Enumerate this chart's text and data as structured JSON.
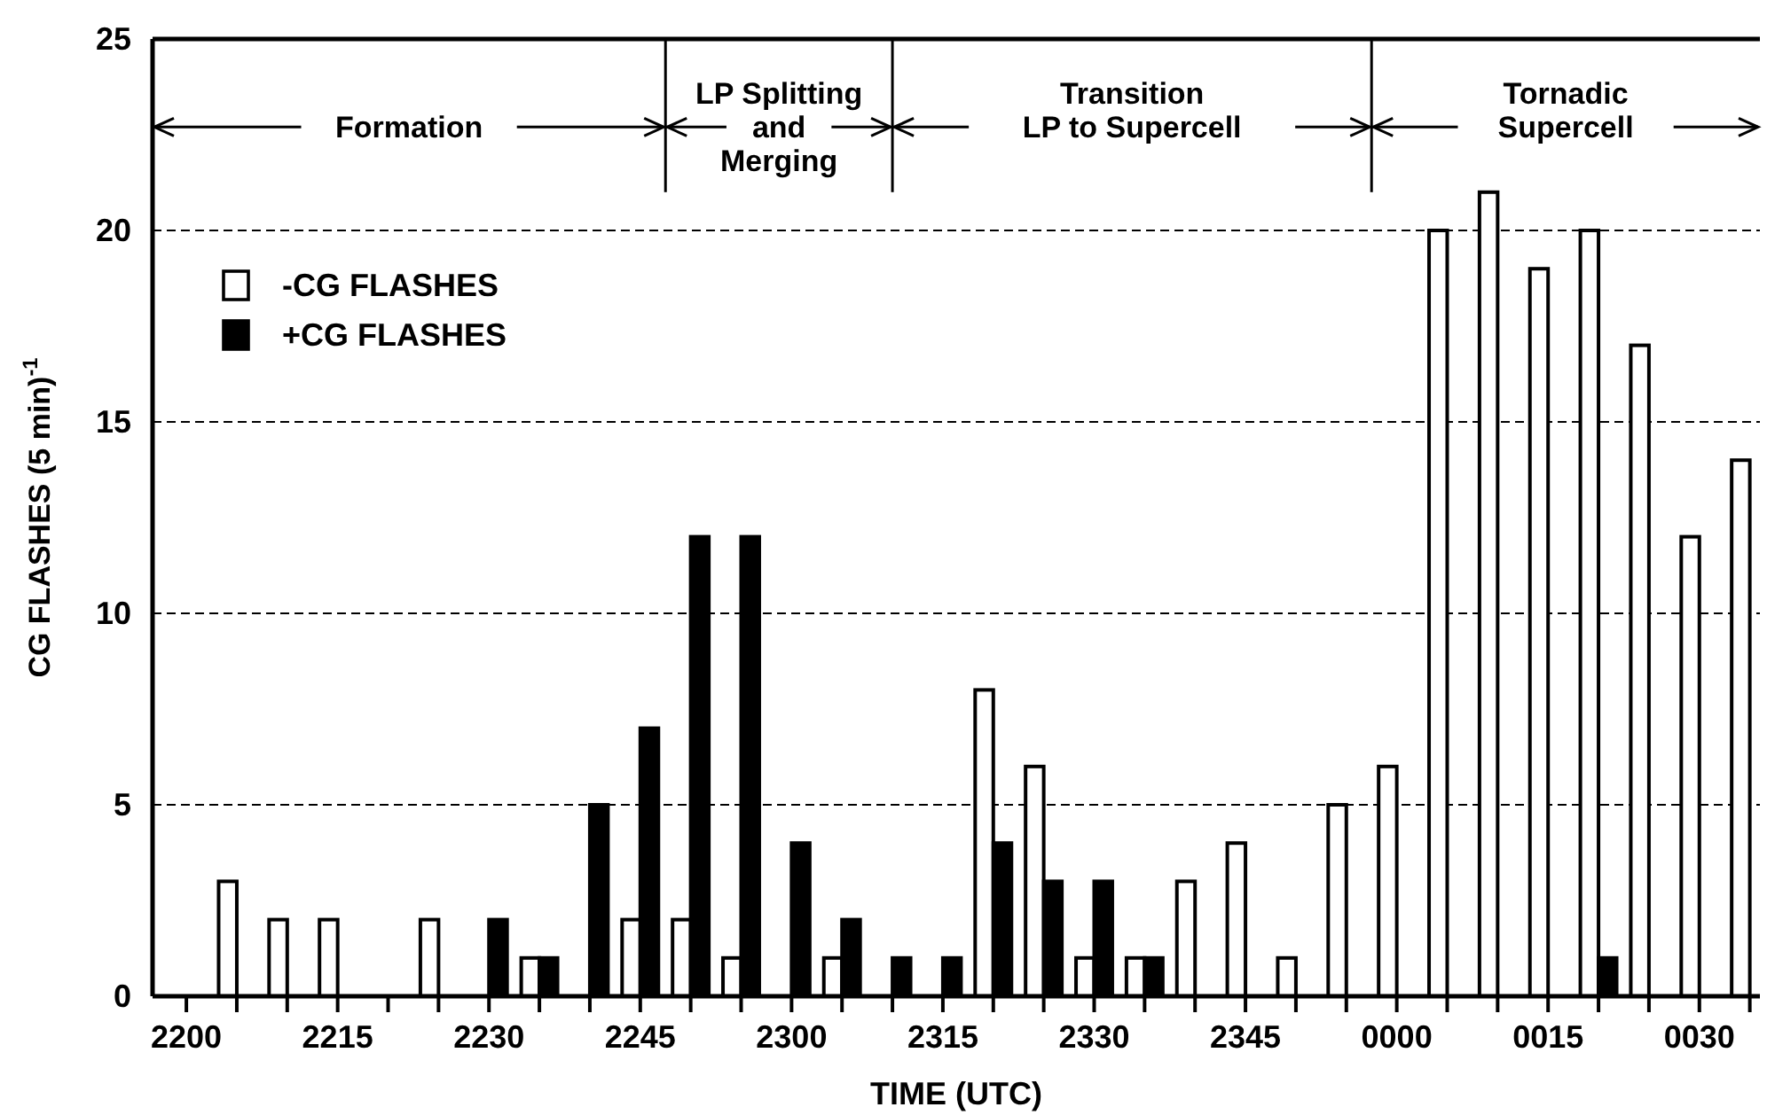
{
  "chart_data": {
    "type": "bar",
    "xlabel": "TIME (UTC)",
    "ylabel": "CG FLASHES (5 min)$^{-1}$",
    "categories": [
      "2200",
      null,
      null,
      "2215",
      null,
      null,
      "2230",
      null,
      null,
      "2245",
      null,
      null,
      "2300",
      null,
      null,
      "2315",
      null,
      null,
      "2330",
      null,
      null,
      "2345",
      null,
      null,
      "0000",
      null,
      null,
      "0015",
      null,
      null,
      "0030",
      null
    ],
    "series": [
      {
        "name": "-CG FLASHES",
        "color": "#ffffff",
        "values": [
          null,
          3,
          2,
          2,
          null,
          2,
          null,
          1,
          null,
          2,
          2,
          1,
          null,
          1,
          null,
          null,
          8,
          6,
          1,
          1,
          3,
          4,
          1,
          5,
          6,
          20,
          21,
          19,
          20,
          17,
          12,
          14
        ]
      },
      {
        "name": "+CG FLASHES",
        "color": "#000000",
        "values": [
          null,
          null,
          null,
          null,
          null,
          null,
          2,
          1,
          5,
          7,
          12,
          12,
          4,
          2,
          1,
          1,
          4,
          3,
          3,
          1,
          null,
          null,
          null,
          null,
          null,
          null,
          null,
          null,
          1,
          null,
          null,
          null
        ]
      }
    ],
    "ylim": [
      0,
      25
    ],
    "yticks": [
      0,
      5,
      10,
      15,
      20,
      25
    ],
    "grid": "y",
    "legend": "top left",
    "annotations": [
      "Formation",
      "LP Splitting\nand\nMerging",
      "Transition\nLP to Supercell",
      "Tornadic\nSupercell"
    ]
  }
}
